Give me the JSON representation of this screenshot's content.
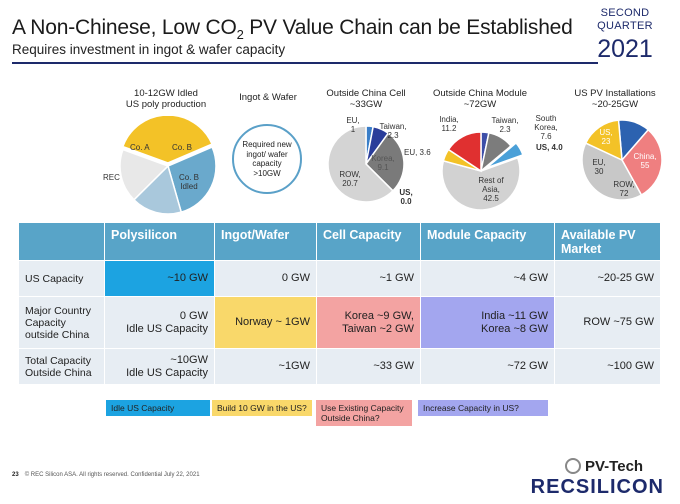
{
  "header": {
    "title_main": "A Non-Chinese, Low CO",
    "title_sub": "2",
    "title_end": " PV Value Chain can be Established",
    "subtitle": "Requires investment in ingot & wafer capacity",
    "quarter_line1": "SECOND",
    "quarter_line2": "QUARTER",
    "year": "2021"
  },
  "colors": {
    "brand_navy": "#1d2a6b",
    "table_header": "#58a4c8",
    "table_cell": "#e7edf3",
    "highlight_blue": "#1ca3e1",
    "highlight_yellow": "#f9d86a",
    "highlight_pink": "#f3a3a2",
    "highlight_purple": "#a3a6ef"
  },
  "charts": {
    "poly": {
      "title_line1": "10-12GW Idled",
      "title_line2": "US poly production",
      "labels": {
        "co_a": "Co. A",
        "co_b": "Co. B",
        "co_b_idled_1": "Co. B",
        "co_b_idled_2": "Idled",
        "rec": "REC"
      }
    },
    "ingot": {
      "title": "Ingot & Wafer",
      "circle_text": "Required new ingot/ wafer capacity >10GW"
    },
    "cell": {
      "title_line1": "Outside China Cell",
      "title_line2": "~33GW",
      "labels": {
        "eu": "EU,",
        "eu_val": "1",
        "taiwan": "Taiwan,",
        "taiwan_val": "2.3",
        "korea": "Korea,",
        "korea_val": "9.1",
        "row": "ROW,",
        "row_val": "20.7",
        "us": "US,",
        "us_val": "0.0"
      }
    },
    "module": {
      "title_line1": "Outside China Module",
      "title_line2": "~72GW",
      "labels": {
        "india": "India,",
        "india_val": "11.2",
        "taiwan": "Taiwan,",
        "taiwan_val": "2.3",
        "south": "South",
        "korea": "Korea,",
        "korea_val": "7.6",
        "us": "US, 4.0",
        "eu": "EU, 3.6",
        "rest": "Rest of",
        "asia": "Asia,",
        "asia_val": "42.5"
      }
    },
    "market": {
      "title_line1": "US PV Installations",
      "title_line2": "~20-25GW",
      "labels": {
        "us": "US,",
        "us_val": "23",
        "china": "China,",
        "china_val": "55",
        "eu": "EU,",
        "eu_val": "30",
        "row": "ROW,",
        "row_val": "72"
      }
    }
  },
  "table": {
    "headers": [
      "",
      "Polysilicon",
      "Ingot/Wafer",
      "Cell Capacity",
      "Module Capacity",
      "Available PV Market"
    ],
    "rows": [
      {
        "label": "US Capacity",
        "cells": [
          "~10 GW",
          "0 GW",
          "~1 GW",
          "~4 GW",
          "~20-25 GW"
        ]
      },
      {
        "label": "Major Country Capacity outside China",
        "cells": [
          "0 GW\nIdle US Capacity",
          "Norway ~ 1GW",
          "Korea ~9 GW,\nTaiwan ~2 GW",
          "India ~11 GW\nKorea ~8 GW",
          "ROW ~75 GW"
        ]
      },
      {
        "label": "Total Capacity Outside China",
        "cells": [
          "~10GW\nIdle US Capacity",
          "~1GW",
          "~33 GW",
          "~72 GW",
          "~100 GW"
        ]
      }
    ]
  },
  "notes": [
    "Idle US Capacity",
    "Build 10 GW in the US?",
    "Use Existing Capacity Outside China?",
    "Increase Capacity in US?"
  ],
  "footer": {
    "page": "23",
    "copyright": "© REC Silicon ASA. All rights reserved. Confidential July 22, 2021",
    "watermark": "PV-Tech",
    "brand": "RECSILICON"
  },
  "chart_data": [
    {
      "type": "pie",
      "title": "10-12GW Idled US poly production",
      "categories": [
        "Co. A",
        "Co. B",
        "Co. B Idled",
        "REC"
      ],
      "values": [
        38,
        27,
        17,
        18
      ]
    },
    {
      "type": "pie",
      "title": "Outside China Cell ~33GW",
      "categories": [
        "EU",
        "Taiwan",
        "Korea",
        "ROW",
        "US"
      ],
      "values": [
        1,
        2.3,
        9.1,
        20.7,
        0.0
      ]
    },
    {
      "type": "pie",
      "title": "Outside China Module ~72GW",
      "categories": [
        "India",
        "Taiwan",
        "South Korea",
        "US",
        "EU",
        "Rest of Asia"
      ],
      "values": [
        11.2,
        2.3,
        7.6,
        4.0,
        3.6,
        42.5
      ]
    },
    {
      "type": "pie",
      "title": "US PV Installations ~20-25GW",
      "categories": [
        "US",
        "China",
        "ROW",
        "EU"
      ],
      "values": [
        23,
        55,
        72,
        30
      ]
    }
  ]
}
